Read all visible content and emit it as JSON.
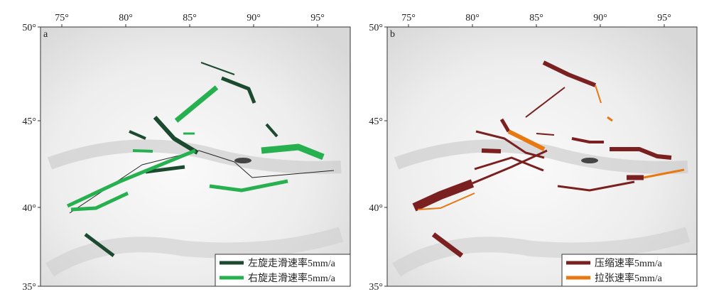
{
  "panels": [
    {
      "label": "a",
      "x_ticks": [
        "75°",
        "80°",
        "85°",
        "90°",
        "95°"
      ],
      "y_ticks": [
        "50°",
        "45°",
        "40°",
        "35°"
      ],
      "legend": [
        "左旋走滑速率5mm/a",
        "右旋走滑速率5mm/a"
      ]
    },
    {
      "label": "b",
      "x_ticks": [
        "75°",
        "80°",
        "85°",
        "90°",
        "95°"
      ],
      "y_ticks": [
        "50°",
        "45°",
        "40°",
        "35°"
      ],
      "legend": [
        "压缩速率5mm/a",
        "拉张速率5mm/a"
      ]
    }
  ]
}
